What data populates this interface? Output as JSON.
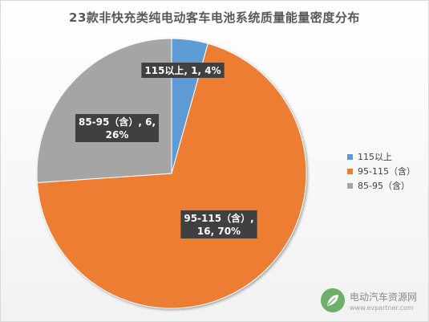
{
  "chart_data": {
    "type": "pie",
    "title": "23款非快充类纯电动客车电池系统质量能量密度分布",
    "categories": [
      "115以上",
      "95-115（含）",
      "85-95（含）"
    ],
    "legend_labels": [
      "115以上",
      "95-115（含）",
      "85-95（含）"
    ],
    "values": [
      1,
      16,
      6
    ],
    "percents": [
      4,
      70,
      26
    ],
    "data_labels": [
      [
        "115以上, 1, 4%"
      ],
      [
        "95-115（含）,",
        "16, 70%"
      ],
      [
        "85-95（含）, 6,",
        "26%"
      ]
    ],
    "colors": [
      "#5b9bd5",
      "#ed7d31",
      "#a5a5a5"
    ],
    "legend_position": "right"
  },
  "watermark": {
    "name": "电动汽车资源网",
    "url": "www.evpartner.com"
  }
}
